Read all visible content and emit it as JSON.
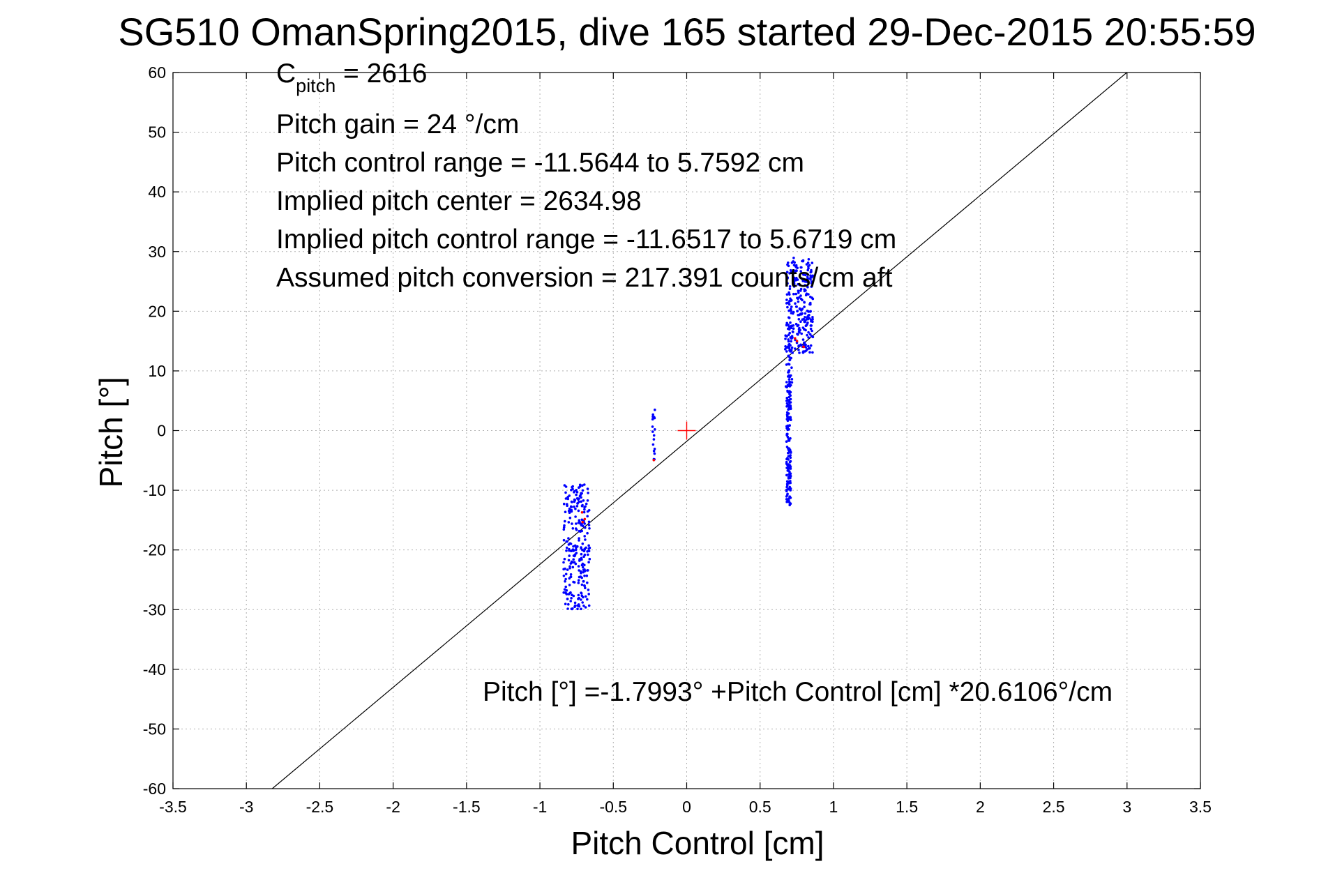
{
  "chart_data": {
    "type": "scatter",
    "title": "SG510 OmanSpring2015, dive 165 started 29-Dec-2015 20:55:59",
    "xlabel": "Pitch Control [cm]",
    "ylabel": "Pitch [°]",
    "xlim": [
      -3.5,
      3.5
    ],
    "ylim": [
      -60,
      60
    ],
    "xticks": [
      -3.5,
      -3,
      -2.5,
      -2,
      -1.5,
      -1,
      -0.5,
      0,
      0.5,
      1,
      1.5,
      2,
      2.5,
      3,
      3.5
    ],
    "yticks": [
      -60,
      -50,
      -40,
      -30,
      -20,
      -10,
      0,
      10,
      20,
      30,
      40,
      50,
      60
    ],
    "xtick_labels": [
      "-3.5",
      "-3",
      "-2.5",
      "-2",
      "-1.5",
      "-1",
      "-0.5",
      "0",
      "0.5",
      "1",
      "1.5",
      "2",
      "2.5",
      "3",
      "3.5"
    ],
    "ytick_labels": [
      "-60",
      "-50",
      "-40",
      "-30",
      "-20",
      "-10",
      "0",
      "10",
      "20",
      "30",
      "40",
      "50",
      "60"
    ],
    "grid": true,
    "annotations": {
      "c_pitch_base": "C",
      "c_pitch_sub": "pitch",
      "c_pitch_value": " = 2616",
      "pitch_gain": "Pitch gain = 24 °/cm",
      "pitch_control_range": "Pitch control range = -11.5644 to 5.7592 cm",
      "implied_pitch_center": "Implied pitch center = 2634.98",
      "implied_pitch_control_range": "Implied pitch control range = -11.6517 to 5.6719 cm",
      "assumed_pitch_conversion": "Assumed pitch conversion = 217.391 counts/cm aft",
      "fit_equation": "Pitch [°] =-1.7993° +Pitch Control [cm] *20.6106°/cm"
    },
    "fit_line": {
      "intercept": -1.7993,
      "slope": 20.6106,
      "color": "#000000"
    },
    "center_marker": {
      "x": 0,
      "y": 0,
      "color": "#ff0000"
    },
    "series": [
      {
        "color": "#0000ff",
        "clusters": [
          {
            "x": [
              -0.84,
              -0.66
            ],
            "y": [
              -30,
              -9
            ],
            "count": 260
          },
          {
            "x": [
              -0.235,
              -0.215
            ],
            "y": [
              -5,
              3.5
            ],
            "count": 18
          },
          {
            "x": [
              0.68,
              0.71
            ],
            "y": [
              -12.5,
              10
            ],
            "count": 170
          },
          {
            "x": [
              0.67,
              0.72
            ],
            "y": [
              7,
              18
            ],
            "count": 40
          },
          {
            "x": [
              0.68,
              0.86
            ],
            "y": [
              13,
              29
            ],
            "count": 260
          }
        ]
      },
      {
        "color": "#ff0000",
        "clusters": [
          {
            "x": [
              -0.72,
              -0.68
            ],
            "y": [
              -16,
              -13
            ],
            "count": 3
          },
          {
            "x": [
              -0.23,
              -0.21
            ],
            "y": [
              -5.5,
              -4.5
            ],
            "count": 1
          },
          {
            "x": [
              0.72,
              0.8
            ],
            "y": [
              13,
              16
            ],
            "count": 4
          }
        ]
      }
    ]
  }
}
